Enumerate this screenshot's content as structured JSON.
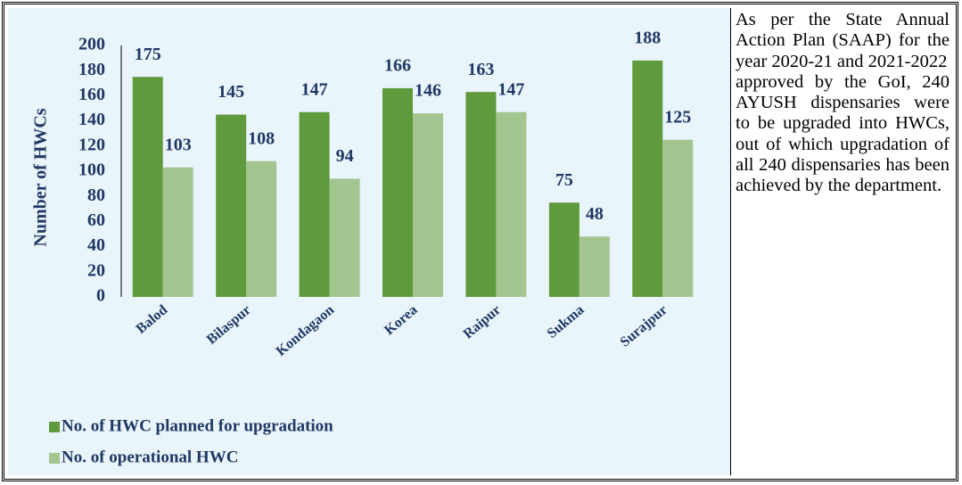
{
  "chart_data": {
    "type": "bar",
    "y_label": "Number of HWCs",
    "categories": [
      "Balod",
      "Bilaspur",
      "Kondagaon",
      "Korea",
      "Raipur",
      "Sukma",
      "Surajpur"
    ],
    "series": [
      {
        "name": "No. of HWC planned for upgradation",
        "color": "#5f9a3c",
        "values": [
          175,
          145,
          147,
          166,
          163,
          75,
          188
        ]
      },
      {
        "name": "No. of operational HWC",
        "color": "#a3c58f",
        "values": [
          103,
          108,
          94,
          146,
          147,
          48,
          125
        ]
      }
    ],
    "ylim": [
      0,
      200
    ],
    "yticks": [
      0,
      20,
      40,
      60,
      80,
      100,
      120,
      140,
      160,
      180,
      200
    ],
    "grid": false,
    "legend": "bottom-left"
  },
  "side_text": {
    "paragraphs": [
      "As per the State Annual Action Plan (SAAP) for the year 2020-21 and 2021-2022",
      "approved by the GoI, 240 AYUSH dispensaries were to be upgraded into HWCs, out of which upgradation of all 240 dispensaries has been achieved by the department."
    ]
  }
}
